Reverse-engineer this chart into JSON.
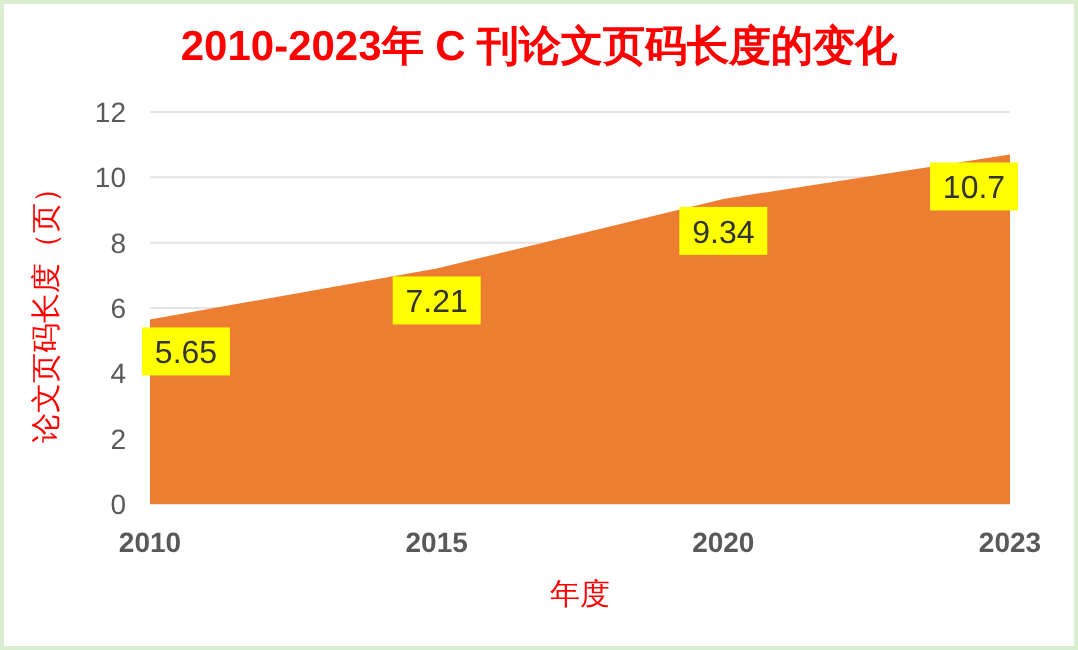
{
  "chart_data": {
    "type": "area",
    "title": "2010-2023年 C 刊论文页码长度的变化",
    "xlabel": "年度",
    "ylabel": "论文页码长度（页）",
    "categories": [
      "2010",
      "2015",
      "2020",
      "2023"
    ],
    "values": [
      5.65,
      7.21,
      9.34,
      10.7
    ],
    "color": "#ed7d31",
    "ylim": [
      0,
      12
    ],
    "yticks": [
      0,
      2,
      4,
      6,
      8,
      10,
      12
    ],
    "grid": "y",
    "data_labels": true
  }
}
